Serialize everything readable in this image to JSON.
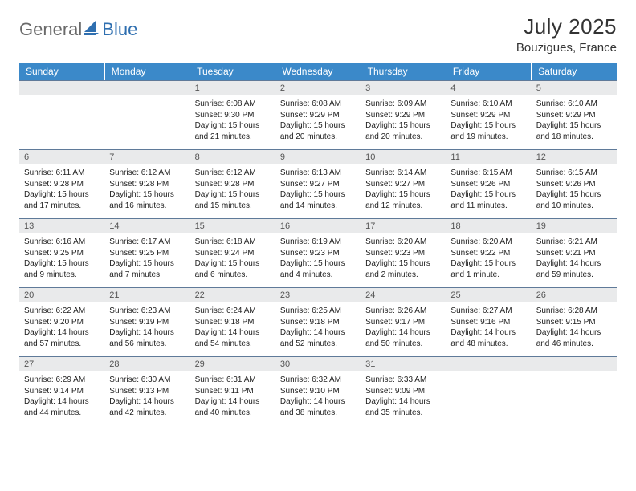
{
  "logo": {
    "gray": "General",
    "blue": "Blue"
  },
  "title": "July 2025",
  "location": "Bouzigues, France",
  "colors": {
    "header_bg": "#3b89c9",
    "header_text": "#ffffff",
    "daynum_bg": "#e9eaeb",
    "cell_border_top": "#5f7a99",
    "logo_gray": "#6a6a6a",
    "logo_blue": "#2f6fb0"
  },
  "dow": [
    "Sunday",
    "Monday",
    "Tuesday",
    "Wednesday",
    "Thursday",
    "Friday",
    "Saturday"
  ],
  "weeks": [
    [
      null,
      null,
      {
        "n": "1",
        "sr": "Sunrise: 6:08 AM",
        "ss": "Sunset: 9:30 PM",
        "d1": "Daylight: 15 hours",
        "d2": "and 21 minutes."
      },
      {
        "n": "2",
        "sr": "Sunrise: 6:08 AM",
        "ss": "Sunset: 9:29 PM",
        "d1": "Daylight: 15 hours",
        "d2": "and 20 minutes."
      },
      {
        "n": "3",
        "sr": "Sunrise: 6:09 AM",
        "ss": "Sunset: 9:29 PM",
        "d1": "Daylight: 15 hours",
        "d2": "and 20 minutes."
      },
      {
        "n": "4",
        "sr": "Sunrise: 6:10 AM",
        "ss": "Sunset: 9:29 PM",
        "d1": "Daylight: 15 hours",
        "d2": "and 19 minutes."
      },
      {
        "n": "5",
        "sr": "Sunrise: 6:10 AM",
        "ss": "Sunset: 9:29 PM",
        "d1": "Daylight: 15 hours",
        "d2": "and 18 minutes."
      }
    ],
    [
      {
        "n": "6",
        "sr": "Sunrise: 6:11 AM",
        "ss": "Sunset: 9:28 PM",
        "d1": "Daylight: 15 hours",
        "d2": "and 17 minutes."
      },
      {
        "n": "7",
        "sr": "Sunrise: 6:12 AM",
        "ss": "Sunset: 9:28 PM",
        "d1": "Daylight: 15 hours",
        "d2": "and 16 minutes."
      },
      {
        "n": "8",
        "sr": "Sunrise: 6:12 AM",
        "ss": "Sunset: 9:28 PM",
        "d1": "Daylight: 15 hours",
        "d2": "and 15 minutes."
      },
      {
        "n": "9",
        "sr": "Sunrise: 6:13 AM",
        "ss": "Sunset: 9:27 PM",
        "d1": "Daylight: 15 hours",
        "d2": "and 14 minutes."
      },
      {
        "n": "10",
        "sr": "Sunrise: 6:14 AM",
        "ss": "Sunset: 9:27 PM",
        "d1": "Daylight: 15 hours",
        "d2": "and 12 minutes."
      },
      {
        "n": "11",
        "sr": "Sunrise: 6:15 AM",
        "ss": "Sunset: 9:26 PM",
        "d1": "Daylight: 15 hours",
        "d2": "and 11 minutes."
      },
      {
        "n": "12",
        "sr": "Sunrise: 6:15 AM",
        "ss": "Sunset: 9:26 PM",
        "d1": "Daylight: 15 hours",
        "d2": "and 10 minutes."
      }
    ],
    [
      {
        "n": "13",
        "sr": "Sunrise: 6:16 AM",
        "ss": "Sunset: 9:25 PM",
        "d1": "Daylight: 15 hours",
        "d2": "and 9 minutes."
      },
      {
        "n": "14",
        "sr": "Sunrise: 6:17 AM",
        "ss": "Sunset: 9:25 PM",
        "d1": "Daylight: 15 hours",
        "d2": "and 7 minutes."
      },
      {
        "n": "15",
        "sr": "Sunrise: 6:18 AM",
        "ss": "Sunset: 9:24 PM",
        "d1": "Daylight: 15 hours",
        "d2": "and 6 minutes."
      },
      {
        "n": "16",
        "sr": "Sunrise: 6:19 AM",
        "ss": "Sunset: 9:23 PM",
        "d1": "Daylight: 15 hours",
        "d2": "and 4 minutes."
      },
      {
        "n": "17",
        "sr": "Sunrise: 6:20 AM",
        "ss": "Sunset: 9:23 PM",
        "d1": "Daylight: 15 hours",
        "d2": "and 2 minutes."
      },
      {
        "n": "18",
        "sr": "Sunrise: 6:20 AM",
        "ss": "Sunset: 9:22 PM",
        "d1": "Daylight: 15 hours",
        "d2": "and 1 minute."
      },
      {
        "n": "19",
        "sr": "Sunrise: 6:21 AM",
        "ss": "Sunset: 9:21 PM",
        "d1": "Daylight: 14 hours",
        "d2": "and 59 minutes."
      }
    ],
    [
      {
        "n": "20",
        "sr": "Sunrise: 6:22 AM",
        "ss": "Sunset: 9:20 PM",
        "d1": "Daylight: 14 hours",
        "d2": "and 57 minutes."
      },
      {
        "n": "21",
        "sr": "Sunrise: 6:23 AM",
        "ss": "Sunset: 9:19 PM",
        "d1": "Daylight: 14 hours",
        "d2": "and 56 minutes."
      },
      {
        "n": "22",
        "sr": "Sunrise: 6:24 AM",
        "ss": "Sunset: 9:18 PM",
        "d1": "Daylight: 14 hours",
        "d2": "and 54 minutes."
      },
      {
        "n": "23",
        "sr": "Sunrise: 6:25 AM",
        "ss": "Sunset: 9:18 PM",
        "d1": "Daylight: 14 hours",
        "d2": "and 52 minutes."
      },
      {
        "n": "24",
        "sr": "Sunrise: 6:26 AM",
        "ss": "Sunset: 9:17 PM",
        "d1": "Daylight: 14 hours",
        "d2": "and 50 minutes."
      },
      {
        "n": "25",
        "sr": "Sunrise: 6:27 AM",
        "ss": "Sunset: 9:16 PM",
        "d1": "Daylight: 14 hours",
        "d2": "and 48 minutes."
      },
      {
        "n": "26",
        "sr": "Sunrise: 6:28 AM",
        "ss": "Sunset: 9:15 PM",
        "d1": "Daylight: 14 hours",
        "d2": "and 46 minutes."
      }
    ],
    [
      {
        "n": "27",
        "sr": "Sunrise: 6:29 AM",
        "ss": "Sunset: 9:14 PM",
        "d1": "Daylight: 14 hours",
        "d2": "and 44 minutes."
      },
      {
        "n": "28",
        "sr": "Sunrise: 6:30 AM",
        "ss": "Sunset: 9:13 PM",
        "d1": "Daylight: 14 hours",
        "d2": "and 42 minutes."
      },
      {
        "n": "29",
        "sr": "Sunrise: 6:31 AM",
        "ss": "Sunset: 9:11 PM",
        "d1": "Daylight: 14 hours",
        "d2": "and 40 minutes."
      },
      {
        "n": "30",
        "sr": "Sunrise: 6:32 AM",
        "ss": "Sunset: 9:10 PM",
        "d1": "Daylight: 14 hours",
        "d2": "and 38 minutes."
      },
      {
        "n": "31",
        "sr": "Sunrise: 6:33 AM",
        "ss": "Sunset: 9:09 PM",
        "d1": "Daylight: 14 hours",
        "d2": "and 35 minutes."
      },
      null,
      null
    ]
  ]
}
